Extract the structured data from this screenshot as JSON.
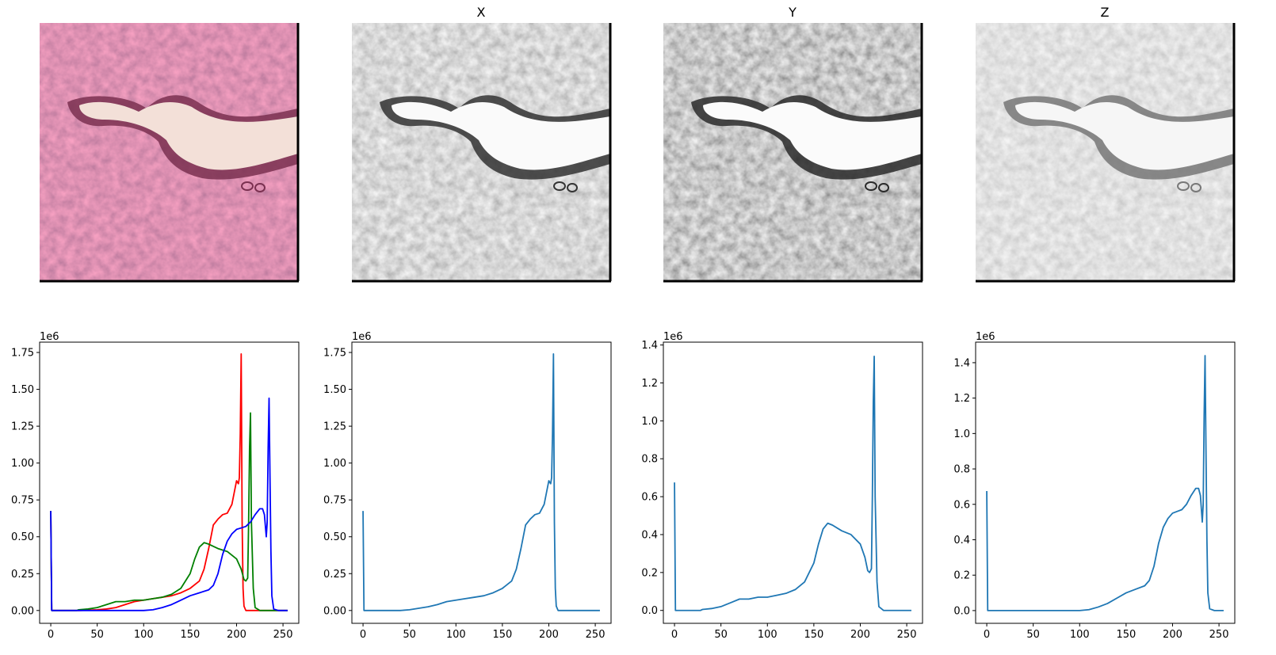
{
  "figure": {
    "image_titles": [
      "",
      "X",
      "Y",
      "Z"
    ],
    "image_panels": [
      {
        "name": "original-rgb",
        "kind": "rgb"
      },
      {
        "name": "channel-x",
        "kind": "gray"
      },
      {
        "name": "channel-y",
        "kind": "gray"
      },
      {
        "name": "channel-z",
        "kind": "gray"
      }
    ]
  },
  "chart_data": [
    {
      "type": "line",
      "title": "",
      "offset_label": "1e6",
      "xlim": [
        -12,
        267
      ],
      "ylim": [
        -0.087,
        1.82
      ],
      "xticks": [
        0,
        50,
        100,
        150,
        200,
        250
      ],
      "yticks": [
        0.0,
        0.25,
        0.5,
        0.75,
        1.0,
        1.25,
        1.5,
        1.75
      ],
      "ytick_labels": [
        "0.00",
        "0.25",
        "0.50",
        "0.75",
        "1.00",
        "1.25",
        "1.50",
        "1.75"
      ],
      "series": [
        {
          "name": "red",
          "color": "#ff0000",
          "x": [
            0,
            1,
            2,
            30,
            50,
            60,
            70,
            80,
            90,
            100,
            110,
            120,
            130,
            140,
            150,
            160,
            165,
            170,
            175,
            180,
            185,
            190,
            195,
            200,
            202,
            203,
            204,
            205,
            206,
            207,
            208,
            210,
            215,
            255
          ],
          "y": [
            0.675,
            0.0,
            0.0,
            0.0,
            0.005,
            0.01,
            0.02,
            0.04,
            0.06,
            0.07,
            0.08,
            0.09,
            0.1,
            0.12,
            0.15,
            0.2,
            0.28,
            0.42,
            0.58,
            0.62,
            0.65,
            0.66,
            0.72,
            0.88,
            0.86,
            0.9,
            1.2,
            1.74,
            0.6,
            0.15,
            0.03,
            0.0,
            0.0,
            0.0
          ]
        },
        {
          "name": "green",
          "color": "#008000",
          "x": [
            0,
            1,
            2,
            28,
            30,
            40,
            50,
            60,
            70,
            80,
            90,
            100,
            110,
            120,
            130,
            140,
            150,
            155,
            160,
            165,
            170,
            180,
            190,
            200,
            205,
            208,
            210,
            212,
            213,
            214,
            215,
            216,
            218,
            220,
            225,
            255
          ],
          "y": [
            0.675,
            0.0,
            0.0,
            0.0,
            0.005,
            0.01,
            0.02,
            0.04,
            0.06,
            0.06,
            0.07,
            0.07,
            0.08,
            0.09,
            0.11,
            0.15,
            0.25,
            0.35,
            0.43,
            0.46,
            0.45,
            0.42,
            0.4,
            0.35,
            0.28,
            0.21,
            0.2,
            0.22,
            0.6,
            1.1,
            1.34,
            0.6,
            0.15,
            0.02,
            0.0,
            0.0
          ]
        },
        {
          "name": "blue",
          "color": "#0000ff",
          "x": [
            0,
            1,
            2,
            100,
            110,
            120,
            130,
            140,
            150,
            160,
            170,
            175,
            180,
            185,
            190,
            195,
            200,
            205,
            210,
            215,
            220,
            225,
            228,
            230,
            232,
            233,
            234,
            235,
            236,
            237,
            238,
            240,
            245,
            255
          ],
          "y": [
            0.675,
            0.0,
            0.0,
            0.0,
            0.005,
            0.02,
            0.04,
            0.07,
            0.1,
            0.12,
            0.14,
            0.17,
            0.25,
            0.38,
            0.47,
            0.52,
            0.55,
            0.56,
            0.57,
            0.6,
            0.65,
            0.69,
            0.69,
            0.65,
            0.5,
            0.6,
            1.1,
            1.44,
            0.9,
            0.4,
            0.1,
            0.01,
            0.0,
            0.0
          ]
        }
      ]
    },
    {
      "type": "line",
      "title": "",
      "offset_label": "1e6",
      "xlim": [
        -12,
        267
      ],
      "ylim": [
        -0.087,
        1.82
      ],
      "xticks": [
        0,
        50,
        100,
        150,
        200,
        250
      ],
      "yticks": [
        0.0,
        0.25,
        0.5,
        0.75,
        1.0,
        1.25,
        1.5,
        1.75
      ],
      "ytick_labels": [
        "0.00",
        "0.25",
        "0.50",
        "0.75",
        "1.00",
        "1.25",
        "1.50",
        "1.75"
      ],
      "series": [
        {
          "name": "X",
          "color": "#1f77b4",
          "x": [
            0,
            1,
            2,
            40,
            50,
            60,
            70,
            80,
            90,
            100,
            110,
            120,
            130,
            140,
            150,
            160,
            165,
            170,
            175,
            180,
            185,
            190,
            195,
            200,
            202,
            203,
            204,
            205,
            206,
            207,
            208,
            210,
            215,
            255
          ],
          "y": [
            0.675,
            0.0,
            0.0,
            0.0,
            0.005,
            0.015,
            0.025,
            0.04,
            0.06,
            0.07,
            0.08,
            0.09,
            0.1,
            0.12,
            0.15,
            0.2,
            0.28,
            0.42,
            0.58,
            0.62,
            0.65,
            0.66,
            0.72,
            0.88,
            0.86,
            0.9,
            1.2,
            1.74,
            0.6,
            0.15,
            0.03,
            0.0,
            0.0,
            0.0
          ]
        }
      ]
    },
    {
      "type": "line",
      "title": "",
      "offset_label": "1e6",
      "xlim": [
        -12,
        267
      ],
      "ylim": [
        -0.068,
        1.415
      ],
      "xticks": [
        0,
        50,
        100,
        150,
        200,
        250
      ],
      "yticks": [
        0.0,
        0.2,
        0.4,
        0.6,
        0.8,
        1.0,
        1.2,
        1.4
      ],
      "ytick_labels": [
        "0.0",
        "0.2",
        "0.4",
        "0.6",
        "0.8",
        "1.0",
        "1.2",
        "1.4"
      ],
      "series": [
        {
          "name": "Y",
          "color": "#1f77b4",
          "x": [
            0,
            1,
            2,
            28,
            30,
            40,
            50,
            60,
            70,
            80,
            90,
            100,
            110,
            120,
            130,
            140,
            150,
            155,
            160,
            165,
            170,
            180,
            190,
            200,
            205,
            208,
            210,
            212,
            213,
            214,
            215,
            216,
            218,
            220,
            225,
            255
          ],
          "y": [
            0.675,
            0.0,
            0.0,
            0.0,
            0.005,
            0.01,
            0.02,
            0.04,
            0.06,
            0.06,
            0.07,
            0.07,
            0.08,
            0.09,
            0.11,
            0.15,
            0.25,
            0.35,
            0.43,
            0.46,
            0.45,
            0.42,
            0.4,
            0.35,
            0.28,
            0.21,
            0.2,
            0.22,
            0.6,
            1.1,
            1.34,
            0.6,
            0.15,
            0.02,
            0.0,
            0.0
          ]
        }
      ]
    },
    {
      "type": "line",
      "title": "",
      "offset_label": "1e6",
      "xlim": [
        -12,
        267
      ],
      "ylim": [
        -0.072,
        1.516
      ],
      "xticks": [
        0,
        50,
        100,
        150,
        200,
        250
      ],
      "yticks": [
        0.0,
        0.2,
        0.4,
        0.6,
        0.8,
        1.0,
        1.2,
        1.4
      ],
      "ytick_labels": [
        "0.0",
        "0.2",
        "0.4",
        "0.6",
        "0.8",
        "1.0",
        "1.2",
        "1.4"
      ],
      "series": [
        {
          "name": "Z",
          "color": "#1f77b4",
          "x": [
            0,
            1,
            2,
            100,
            110,
            120,
            130,
            140,
            150,
            160,
            170,
            175,
            180,
            185,
            190,
            195,
            200,
            205,
            210,
            215,
            220,
            225,
            228,
            230,
            232,
            233,
            234,
            235,
            236,
            237,
            238,
            240,
            245,
            255
          ],
          "y": [
            0.675,
            0.0,
            0.0,
            0.0,
            0.005,
            0.02,
            0.04,
            0.07,
            0.1,
            0.12,
            0.14,
            0.17,
            0.25,
            0.38,
            0.47,
            0.52,
            0.55,
            0.56,
            0.57,
            0.6,
            0.65,
            0.69,
            0.69,
            0.65,
            0.5,
            0.6,
            1.1,
            1.44,
            0.9,
            0.4,
            0.1,
            0.01,
            0.0,
            0.0
          ]
        }
      ]
    }
  ]
}
